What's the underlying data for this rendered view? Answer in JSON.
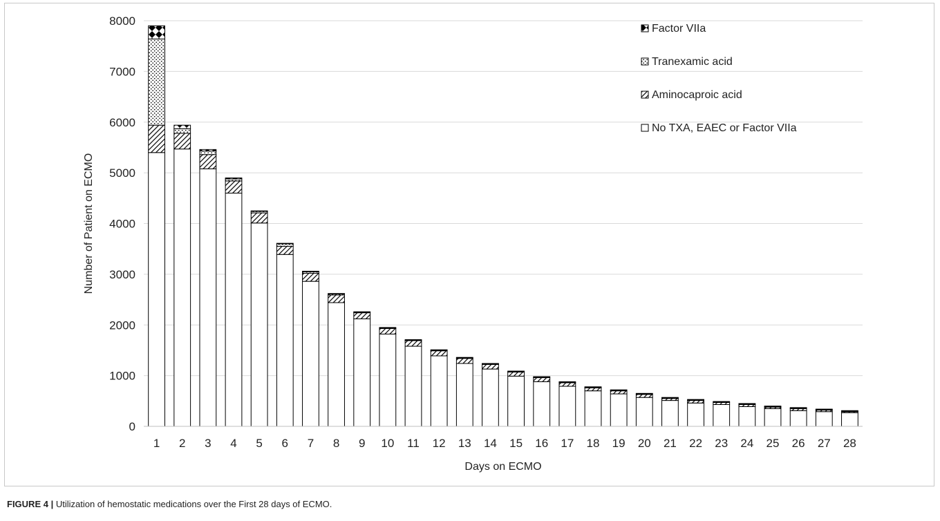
{
  "caption": {
    "label": "FIGURE 4 |",
    "text": "Utilization of hemostatic medications over the First 28 days of ECMO."
  },
  "chart_data": {
    "type": "bar",
    "stacked": true,
    "title": "",
    "xlabel": "Days on ECMO",
    "ylabel": "Number of Patient on ECMO",
    "ylim": [
      0,
      8000
    ],
    "yticks": [
      0,
      1000,
      2000,
      3000,
      4000,
      5000,
      6000,
      7000,
      8000
    ],
    "grid": true,
    "legend_position": "top-right",
    "categories": [
      "1",
      "2",
      "3",
      "4",
      "5",
      "6",
      "7",
      "8",
      "9",
      "10",
      "11",
      "12",
      "13",
      "14",
      "15",
      "16",
      "17",
      "18",
      "19",
      "20",
      "21",
      "22",
      "23",
      "24",
      "25",
      "26",
      "27",
      "28"
    ],
    "series": [
      {
        "name": "No TXA, EAEC or Factor VIIa",
        "pattern": "plain",
        "values": [
          5400,
          5470,
          5080,
          4600,
          4010,
          3390,
          2860,
          2440,
          2120,
          1820,
          1580,
          1390,
          1240,
          1130,
          990,
          880,
          790,
          700,
          640,
          570,
          510,
          460,
          430,
          390,
          350,
          310,
          290,
          270
        ]
      },
      {
        "name": "Aminocaproic acid",
        "pattern": "diagonal",
        "values": [
          540,
          310,
          280,
          240,
          200,
          160,
          160,
          150,
          120,
          110,
          110,
          100,
          100,
          90,
          80,
          80,
          70,
          60,
          60,
          60,
          40,
          50,
          40,
          40,
          30,
          40,
          30,
          20
        ]
      },
      {
        "name": "Tranexamic acid",
        "pattern": "dots",
        "values": [
          1700,
          90,
          70,
          40,
          30,
          50,
          30,
          20,
          10,
          10,
          10,
          10,
          10,
          10,
          10,
          10,
          10,
          10,
          10,
          10,
          10,
          10,
          10,
          10,
          10,
          10,
          10,
          10
        ]
      },
      {
        "name": "Factor VIIa",
        "pattern": "checker",
        "values": [
          260,
          70,
          30,
          20,
          10,
          10,
          10,
          10,
          10,
          10,
          10,
          10,
          10,
          10,
          10,
          10,
          10,
          10,
          10,
          10,
          10,
          10,
          10,
          10,
          10,
          10,
          10,
          10
        ]
      }
    ],
    "legend_order": [
      "Factor VIIa",
      "Tranexamic acid",
      "Aminocaproic acid",
      "No TXA, EAEC or Factor VIIa"
    ],
    "colors": {
      "bar_stroke": "#000000",
      "fill": "#ffffff",
      "grid": "#d9d9d9"
    }
  }
}
